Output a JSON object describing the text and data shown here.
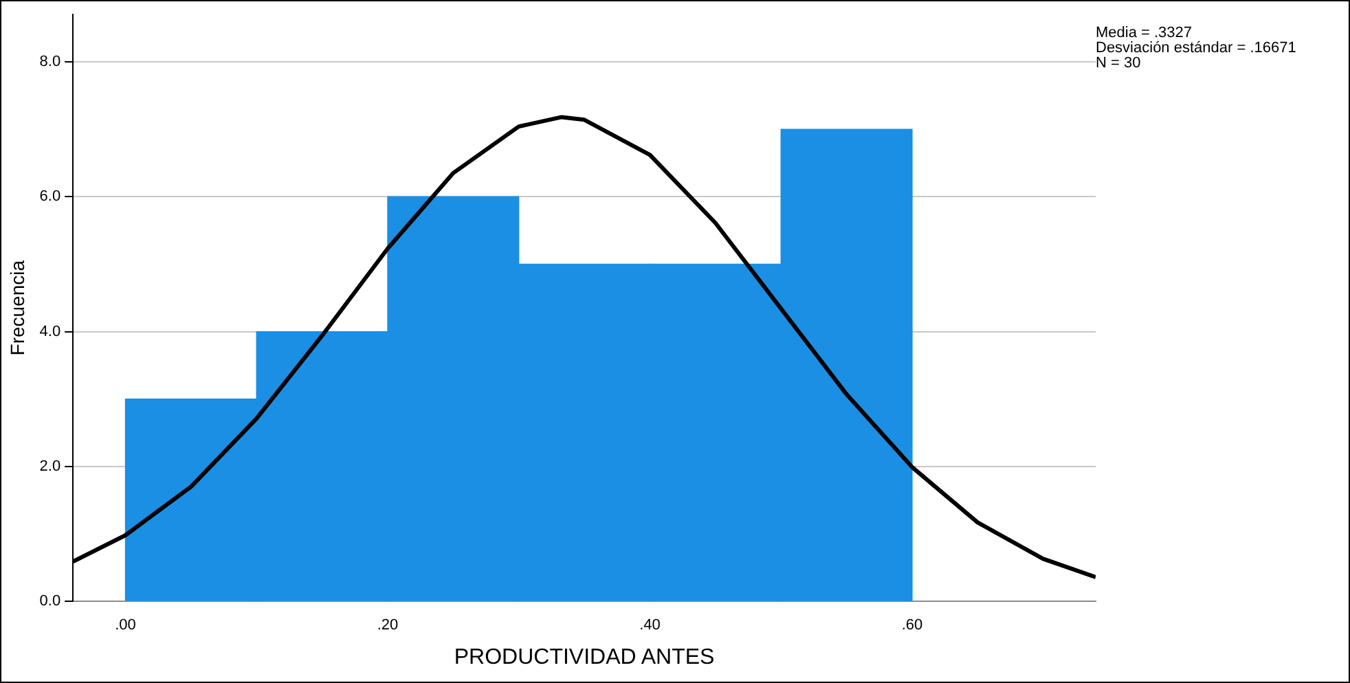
{
  "chart_data": {
    "type": "histogram",
    "xlabel": "PRODUCTIVIDAD ANTES",
    "ylabel": "Frecuencia",
    "annotations": [
      "Media = .3327",
      "Desviación estándar = .16671",
      "N = 30"
    ],
    "bins": [
      0,
      0.1,
      0.2,
      0.3,
      0.4,
      0.5,
      0.6
    ],
    "series": [
      {
        "color": "#1a8fe3",
        "values": [
          3,
          4,
          6,
          5,
          5,
          7
        ]
      },
      {
        "type": "line",
        "color": "#000000",
        "x": [
          -0.04,
          0,
          0.05,
          0.1,
          0.15,
          0.2,
          0.25,
          0.3,
          0.3327,
          0.35,
          0.4,
          0.45,
          0.5,
          0.55,
          0.6,
          0.65,
          0.7,
          0.74
        ],
        "values": [
          0.59,
          0.98,
          1.7,
          2.71,
          3.94,
          5.23,
          6.35,
          7.04,
          7.18,
          7.14,
          6.62,
          5.61,
          4.34,
          3.07,
          1.99,
          1.17,
          0.63,
          0.36
        ]
      }
    ],
    "xlim": [
      -0.04,
      0.74
    ],
    "xticks": [
      {
        "value": 0,
        "label": ".00"
      },
      {
        "value": 0.2,
        "label": ".20"
      },
      {
        "value": 0.4,
        "label": ".40"
      },
      {
        "value": 0.6,
        "label": ".60"
      }
    ],
    "ylim": [
      0,
      8.7
    ],
    "yticks": [
      {
        "value": 0,
        "label": "0.0"
      },
      {
        "value": 2,
        "label": "2.0"
      },
      {
        "value": 4,
        "label": "4.0"
      },
      {
        "value": 6,
        "label": "6.0"
      },
      {
        "value": 8,
        "label": "8.0"
      }
    ],
    "grid": "y",
    "legend": false,
    "marker": "none",
    "line_style": "solid"
  }
}
